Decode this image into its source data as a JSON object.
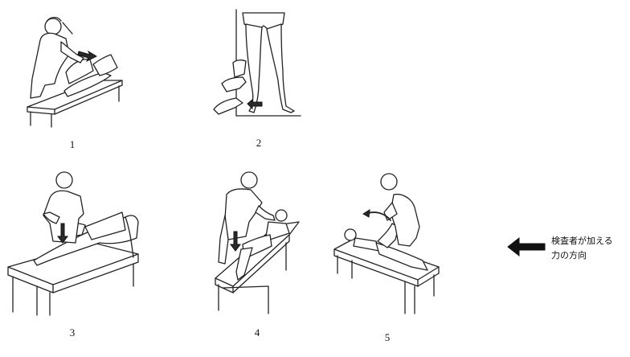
{
  "figures": [
    {
      "id": 1,
      "label": "1"
    },
    {
      "id": 2,
      "label": "2"
    },
    {
      "id": 3,
      "label": "3"
    },
    {
      "id": 4,
      "label": "4"
    },
    {
      "id": 5,
      "label": "5"
    }
  ],
  "legend": {
    "line1": "検査者が加える",
    "line2": "力の方向",
    "arrow_icon": "left-arrow-icon"
  },
  "colors": {
    "ink": "#222222",
    "background": "#ffffff"
  }
}
